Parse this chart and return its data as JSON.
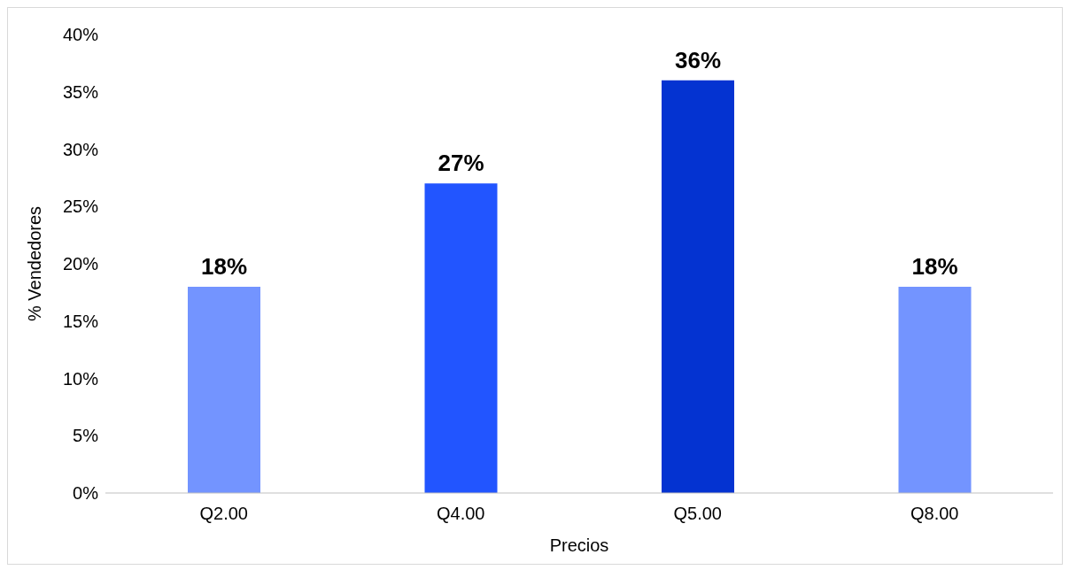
{
  "chart_data": {
    "type": "bar",
    "xlabel": "Precios",
    "ylabel": "% Vendedores",
    "categories": [
      "Q2.00",
      "Q4.00",
      "Q5.00",
      "Q8.00"
    ],
    "values": [
      18,
      27,
      36,
      18
    ],
    "colors": [
      "#7394ff",
      "#2255ff",
      "#0433d1",
      "#7394ff"
    ],
    "value_labels": [
      "18%",
      "27%",
      "36%",
      "18%"
    ],
    "ylim": [
      0,
      40
    ],
    "yticks": [
      {
        "value": 0,
        "label": "0%"
      },
      {
        "value": 5,
        "label": "5%"
      },
      {
        "value": 10,
        "label": "10%"
      },
      {
        "value": 15,
        "label": "15%"
      },
      {
        "value": 20,
        "label": "20%"
      },
      {
        "value": 25,
        "label": "25%"
      },
      {
        "value": 30,
        "label": "30%"
      },
      {
        "value": 35,
        "label": "35%"
      },
      {
        "value": 40,
        "label": "40%"
      }
    ],
    "grid": false,
    "legend": false
  }
}
